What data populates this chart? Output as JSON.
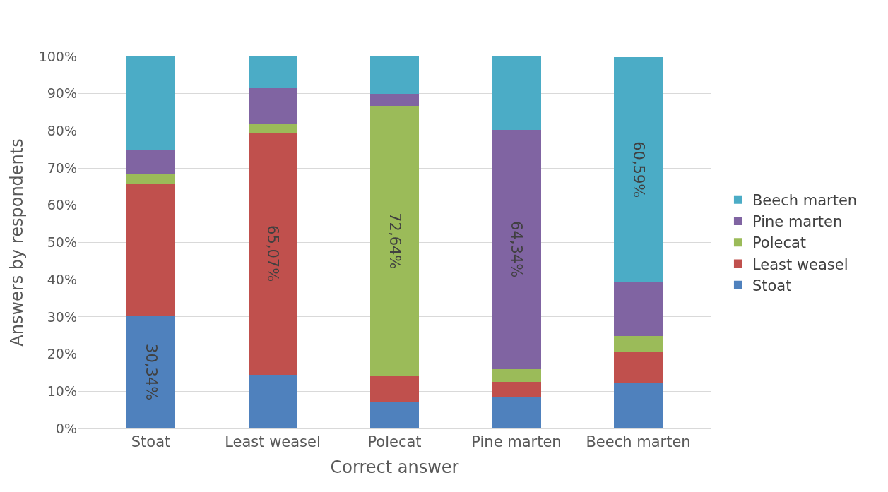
{
  "chart_data": {
    "type": "bar",
    "stacked": true,
    "xlabel": "Correct answer",
    "ylabel": "Answers by respondents",
    "categories": [
      "Stoat",
      "Least weasel",
      "Polecat",
      "Pine marten",
      "Beech marten"
    ],
    "series": [
      {
        "name": "Stoat",
        "color": "#4f81bd",
        "values": [
          30.34,
          14.5,
          7.2,
          8.6,
          12.1
        ],
        "value_labels": [
          "30,34%",
          null,
          null,
          null,
          null
        ]
      },
      {
        "name": "Least weasel",
        "color": "#c0504d",
        "values": [
          35.6,
          65.07,
          6.9,
          3.9,
          8.4
        ],
        "value_labels": [
          null,
          "65,07%",
          null,
          null,
          null
        ]
      },
      {
        "name": "Polecat",
        "color": "#9bbb59",
        "values": [
          2.6,
          2.4,
          72.64,
          3.5,
          4.4
        ],
        "value_labels": [
          null,
          null,
          "72,64%",
          null,
          null
        ]
      },
      {
        "name": "Pine marten",
        "color": "#8064a2",
        "values": [
          6.2,
          9.7,
          3.2,
          64.34,
          14.4
        ],
        "value_labels": [
          null,
          null,
          null,
          "64,34%",
          null
        ]
      },
      {
        "name": "Beech marten",
        "color": "#4bacc6",
        "values": [
          25.3,
          8.4,
          10.0,
          19.7,
          60.59
        ],
        "value_labels": [
          null,
          null,
          null,
          null,
          "60,59%"
        ]
      }
    ],
    "ylim": [
      0,
      100
    ],
    "yticks": [
      {
        "value": 0,
        "label": "0%"
      },
      {
        "value": 10,
        "label": "10%"
      },
      {
        "value": 20,
        "label": "20%"
      },
      {
        "value": 30,
        "label": "30%"
      },
      {
        "value": 40,
        "label": "40%"
      },
      {
        "value": 50,
        "label": "50%"
      },
      {
        "value": 60,
        "label": "60%"
      },
      {
        "value": 70,
        "label": "70%"
      },
      {
        "value": 80,
        "label": "80%"
      },
      {
        "value": 90,
        "label": "90%"
      },
      {
        "value": 100,
        "label": "100%"
      }
    ],
    "grid": "y",
    "legend": "right"
  }
}
